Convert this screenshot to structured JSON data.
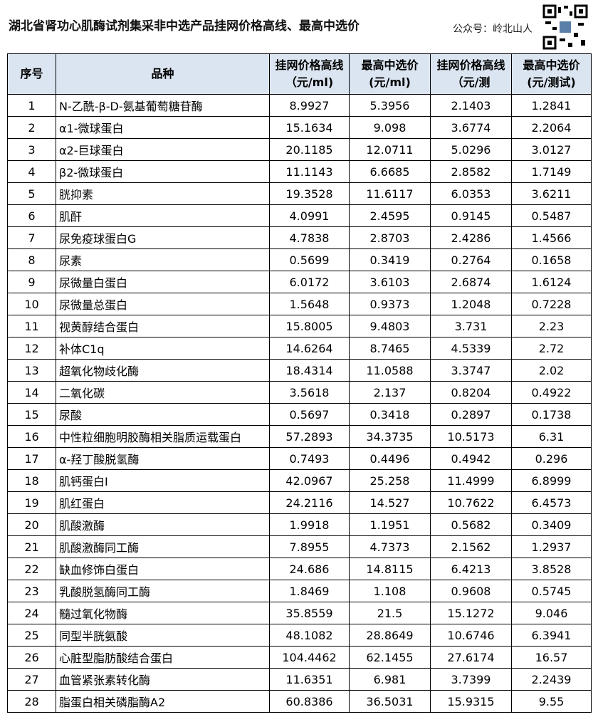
{
  "header": {
    "title": "湖北省肾功心肌酶试剂集采非中选产品挂网价格高线、最高中选价",
    "account": "公众号：岭北山人"
  },
  "table": {
    "columns": [
      "序号",
      "品种",
      "挂网价格高线（元/ml)",
      "最高中选价(元/ml)",
      "挂网价格高线（元/测",
      "最高中选价(元/测试)"
    ],
    "rows": [
      [
        "1",
        "N-乙酰-β-D-氨基葡萄糖苷酶",
        "8.9927",
        "5.3956",
        "2.1403",
        "1.2841"
      ],
      [
        "2",
        "α1-微球蛋白",
        "15.1634",
        "9.098",
        "3.6774",
        "2.2064"
      ],
      [
        "3",
        "α2-巨球蛋白",
        "20.1185",
        "12.0711",
        "5.0296",
        "3.0127"
      ],
      [
        "4",
        "β2-微球蛋白",
        "11.1143",
        "6.6685",
        "2.8582",
        "1.7149"
      ],
      [
        "5",
        "胱抑素",
        "19.3528",
        "11.6117",
        "6.0353",
        "3.6211"
      ],
      [
        "6",
        "肌酐",
        "4.0991",
        "2.4595",
        "0.9145",
        "0.5487"
      ],
      [
        "7",
        "尿免疫球蛋白G",
        "4.7838",
        "2.8703",
        "2.4286",
        "1.4566"
      ],
      [
        "8",
        "尿素",
        "0.5699",
        "0.3419",
        "0.2764",
        "0.1658"
      ],
      [
        "9",
        "尿微量白蛋白",
        "6.0172",
        "3.6103",
        "2.6874",
        "1.6124"
      ],
      [
        "10",
        "尿微量总蛋白",
        "1.5648",
        "0.9373",
        "1.2048",
        "0.7228"
      ],
      [
        "11",
        "视黄醇结合蛋白",
        "15.8005",
        "9.4803",
        "3.731",
        "2.23"
      ],
      [
        "12",
        "补体C1q",
        "14.6264",
        "8.7465",
        "4.5339",
        "2.72"
      ],
      [
        "13",
        "超氧化物歧化酶",
        "18.4314",
        "11.0588",
        "3.3747",
        "2.02"
      ],
      [
        "14",
        "二氧化碳",
        "3.5618",
        "2.137",
        "0.8204",
        "0.4922"
      ],
      [
        "15",
        "尿酸",
        "0.5697",
        "0.3418",
        "0.2897",
        "0.1738"
      ],
      [
        "16",
        "中性粒细胞明胶酶相关脂质运载蛋白",
        "57.2893",
        "34.3735",
        "10.5173",
        "6.31"
      ],
      [
        "17",
        "α-羟丁酸脱氢酶",
        "0.7493",
        "0.4496",
        "0.4942",
        "0.296"
      ],
      [
        "18",
        "肌钙蛋白I",
        "42.0967",
        "25.258",
        "11.4999",
        "6.8999"
      ],
      [
        "19",
        "肌红蛋白",
        "24.2116",
        "14.527",
        "10.7622",
        "6.4573"
      ],
      [
        "20",
        "肌酸激酶",
        "1.9918",
        "1.1951",
        "0.5682",
        "0.3409"
      ],
      [
        "21",
        "肌酸激酶同工酶",
        "7.8955",
        "4.7373",
        "2.1562",
        "1.2937"
      ],
      [
        "22",
        "缺血修饰白蛋白",
        "24.686",
        "14.8115",
        "6.4213",
        "3.8528"
      ],
      [
        "23",
        "乳酸脱氢酶同工酶",
        "1.8469",
        "1.108",
        "0.9608",
        "0.5745"
      ],
      [
        "24",
        "髓过氧化物酶",
        "35.8559",
        "21.5",
        "15.1272",
        "9.046"
      ],
      [
        "25",
        "同型半胱氨酸",
        "48.1082",
        "28.8649",
        "10.6746",
        "6.3941"
      ],
      [
        "26",
        "心脏型脂肪酸结合蛋白",
        "104.4462",
        "62.1455",
        "27.6174",
        "16.57"
      ],
      [
        "27",
        "血管紧张素转化酶",
        "11.6351",
        "6.981",
        "3.7399",
        "2.2439"
      ],
      [
        "28",
        "脂蛋白相关磷脂酶A2",
        "60.8386",
        "36.5031",
        "15.9315",
        "9.55"
      ]
    ]
  }
}
